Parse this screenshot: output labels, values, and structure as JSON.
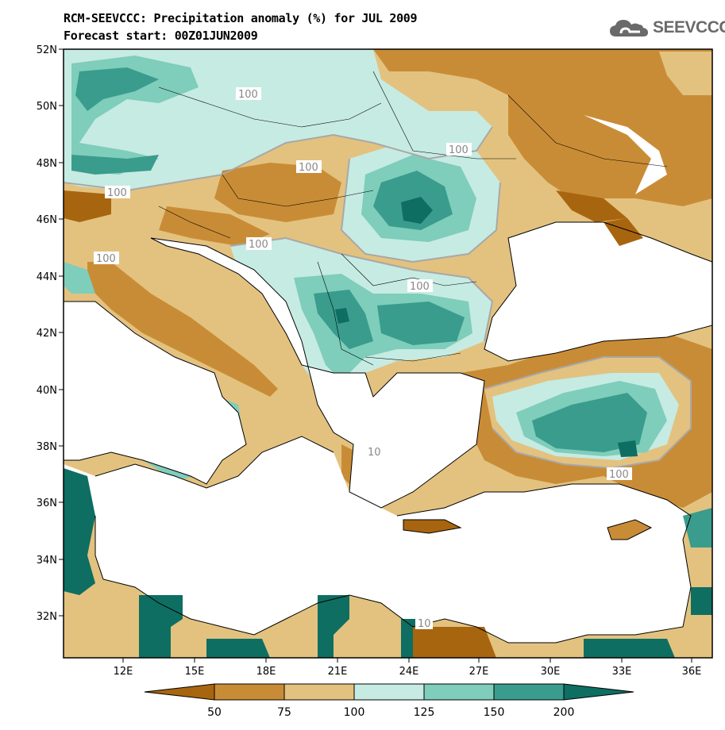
{
  "header": {
    "title_line1": "RCM-SEEVCCC: Precipitation anomaly (%) for JUL 2009",
    "title_line2": "Forecast start: 00Z01JUN2009",
    "logo_text": "SEEVCCC",
    "logo_icon": "cloud-icon"
  },
  "map": {
    "lat_labels": [
      "52N",
      "50N",
      "48N",
      "46N",
      "44N",
      "42N",
      "40N",
      "38N",
      "36N",
      "34N",
      "32N"
    ],
    "lon_labels": [
      "12E",
      "15E",
      "18E",
      "21E",
      "24E",
      "27E",
      "30E",
      "33E",
      "36E"
    ],
    "contour_label": "100",
    "contour_label_partial_1": "10",
    "contour_label_partial_2": "10"
  },
  "colorbar": {
    "labels": [
      "50",
      "75",
      "100",
      "125",
      "150",
      "200"
    ],
    "colors": {
      "below_50": "#a8650f",
      "50_75": "#c98c36",
      "75_100": "#e3c27f",
      "100_125": "#c6ebe3",
      "125_150": "#7fcdbb",
      "150_200": "#3a9c8c",
      "above_200": "#0e6e62"
    }
  }
}
